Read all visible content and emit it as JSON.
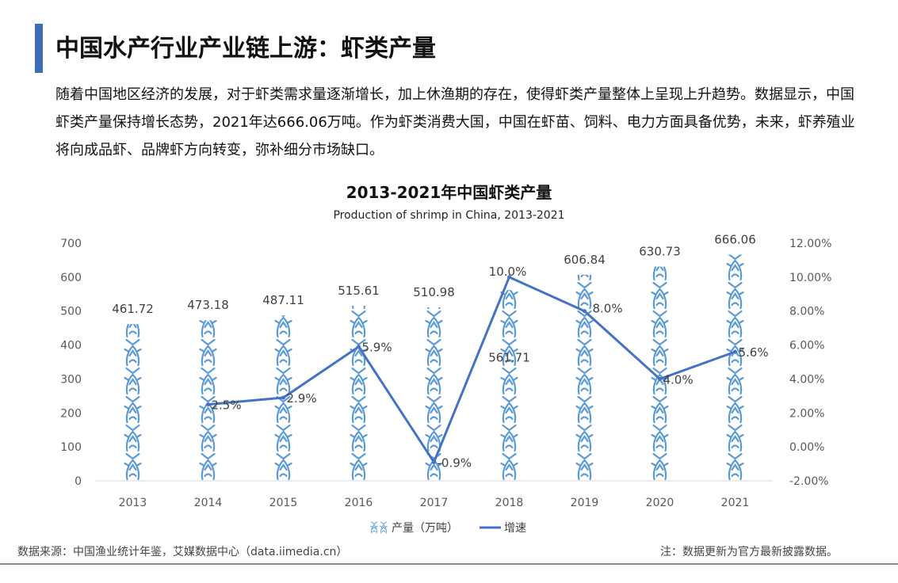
{
  "page": {
    "title": "中国水产行业产业链上游：虾类产量",
    "intro": "随着中国地区经济的发展，对于虾类需求量逐渐增长，加上休渔期的存在，使得虾类产量整体上呈现上升趋势。数据显示，中国虾类产量保持增长态势，2021年达666.06万吨。作为虾类消费大国，中国在虾苗、饲料、电力方面具备优势，未来，虾养殖业将向成品虾、品牌虾方向转变，弥补细分市场缺口。",
    "source": "数据来源：中国渔业统计年鉴，艾媒数据中心（data.iimedia.cn）",
    "note": "注：数据更新为官方最新披露数据。",
    "accent_color": "#3e6fb6"
  },
  "chart_data": {
    "type": "bar",
    "title": "2013-2021年中国虾类产量",
    "subtitle": "Production of shrimp in China, 2013-2021",
    "categories": [
      "2013",
      "2014",
      "2015",
      "2016",
      "2017",
      "2018",
      "2019",
      "2020",
      "2021"
    ],
    "series": [
      {
        "name": "产量（万吨）",
        "chart_type": "bar",
        "axis": "left",
        "icon": "shrimp-icon",
        "color": "#5b9bd5",
        "values": [
          461.72,
          473.18,
          487.11,
          515.61,
          510.98,
          561.71,
          606.84,
          630.73,
          666.06
        ],
        "labels": [
          "461.72",
          "473.18",
          "487.11",
          "515.61",
          "510.98",
          "561.71",
          "606.84",
          "630.73",
          "666.06"
        ]
      },
      {
        "name": "增速",
        "chart_type": "line",
        "axis": "right",
        "color": "#4472c4",
        "values": [
          null,
          2.5,
          2.9,
          5.9,
          -0.9,
          10.0,
          8.0,
          4.0,
          5.6
        ],
        "labels": [
          "",
          "2.5%",
          "2.9%",
          "5.9%",
          "-0.9%",
          "10.0%",
          "8.0%",
          "4.0%",
          "5.6%"
        ]
      }
    ],
    "y_left": {
      "ylim": [
        0,
        700
      ],
      "ticks": [
        "0",
        "100",
        "200",
        "300",
        "400",
        "500",
        "600",
        "700"
      ]
    },
    "y_right": {
      "ylim": [
        -2,
        12
      ],
      "ticks": [
        "-2.00%",
        "0.00%",
        "2.00%",
        "4.00%",
        "6.00%",
        "8.00%",
        "10.00%",
        "12.00%"
      ]
    },
    "grid": false,
    "legend": "bottom-center"
  }
}
